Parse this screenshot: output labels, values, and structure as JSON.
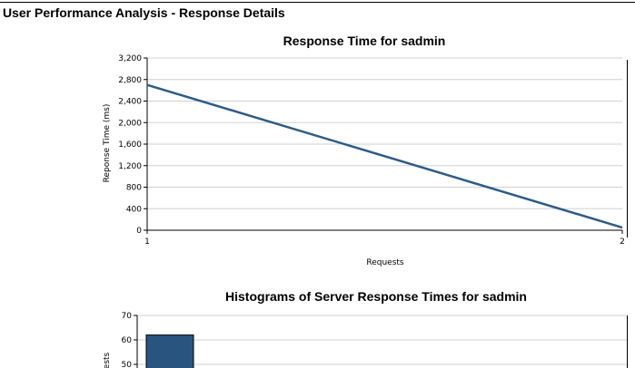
{
  "page": {
    "title": "User Performance Analysis - Response Details"
  },
  "chart_data": [
    {
      "type": "line",
      "title": "Response Time for sadmin",
      "xlabel": "Requests",
      "ylabel": "Reponse Time (ms)",
      "x": [
        1,
        2
      ],
      "x_ticks": [
        "1",
        "2"
      ],
      "y_ticks": [
        "0",
        "400",
        "800",
        "1,200",
        "1,600",
        "2,000",
        "2,400",
        "2,800",
        "3,200"
      ],
      "ylim": [
        0,
        3200
      ],
      "series": [
        {
          "values": [
            2700,
            50
          ],
          "color": "#2f5b8a"
        }
      ],
      "grid": true
    },
    {
      "type": "bar",
      "title": "Histograms of Server Response Times for sadmin",
      "ylabel": "ests",
      "y_ticks": [
        "50",
        "60",
        "70"
      ],
      "ylim_visible": [
        50,
        70
      ],
      "values": [
        62
      ],
      "color": "#2a5480",
      "grid": true
    }
  ]
}
